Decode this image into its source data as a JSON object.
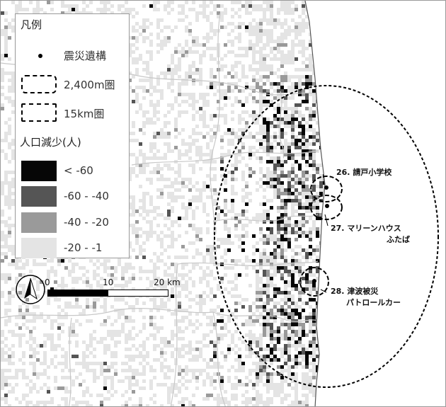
{
  "legend": {
    "title": "凡例",
    "items": {
      "site": "震災遺構",
      "ring_2400": "2,400m圏",
      "ring_15km": "15km圏"
    },
    "pop_title": "人口減少(人)",
    "classes": [
      {
        "label": "< -60",
        "color": "#060606"
      },
      {
        "label": "-60 - -40",
        "color": "#555555"
      },
      {
        "label": "-40 - -20",
        "color": "#9a9a9a"
      },
      {
        "label": "-20 - -1",
        "color": "#e4e4e4"
      }
    ]
  },
  "scale": {
    "ticks": [
      "0",
      "10",
      "20 km"
    ]
  },
  "sites": [
    {
      "label": "26. 請戸小学校"
    },
    {
      "label": "27. マリーンハウス",
      "sub": "ふたば"
    },
    {
      "label": "28. 津波被災",
      "sub": "パトロールカー"
    }
  ],
  "north_icon": "north-arrow-icon"
}
